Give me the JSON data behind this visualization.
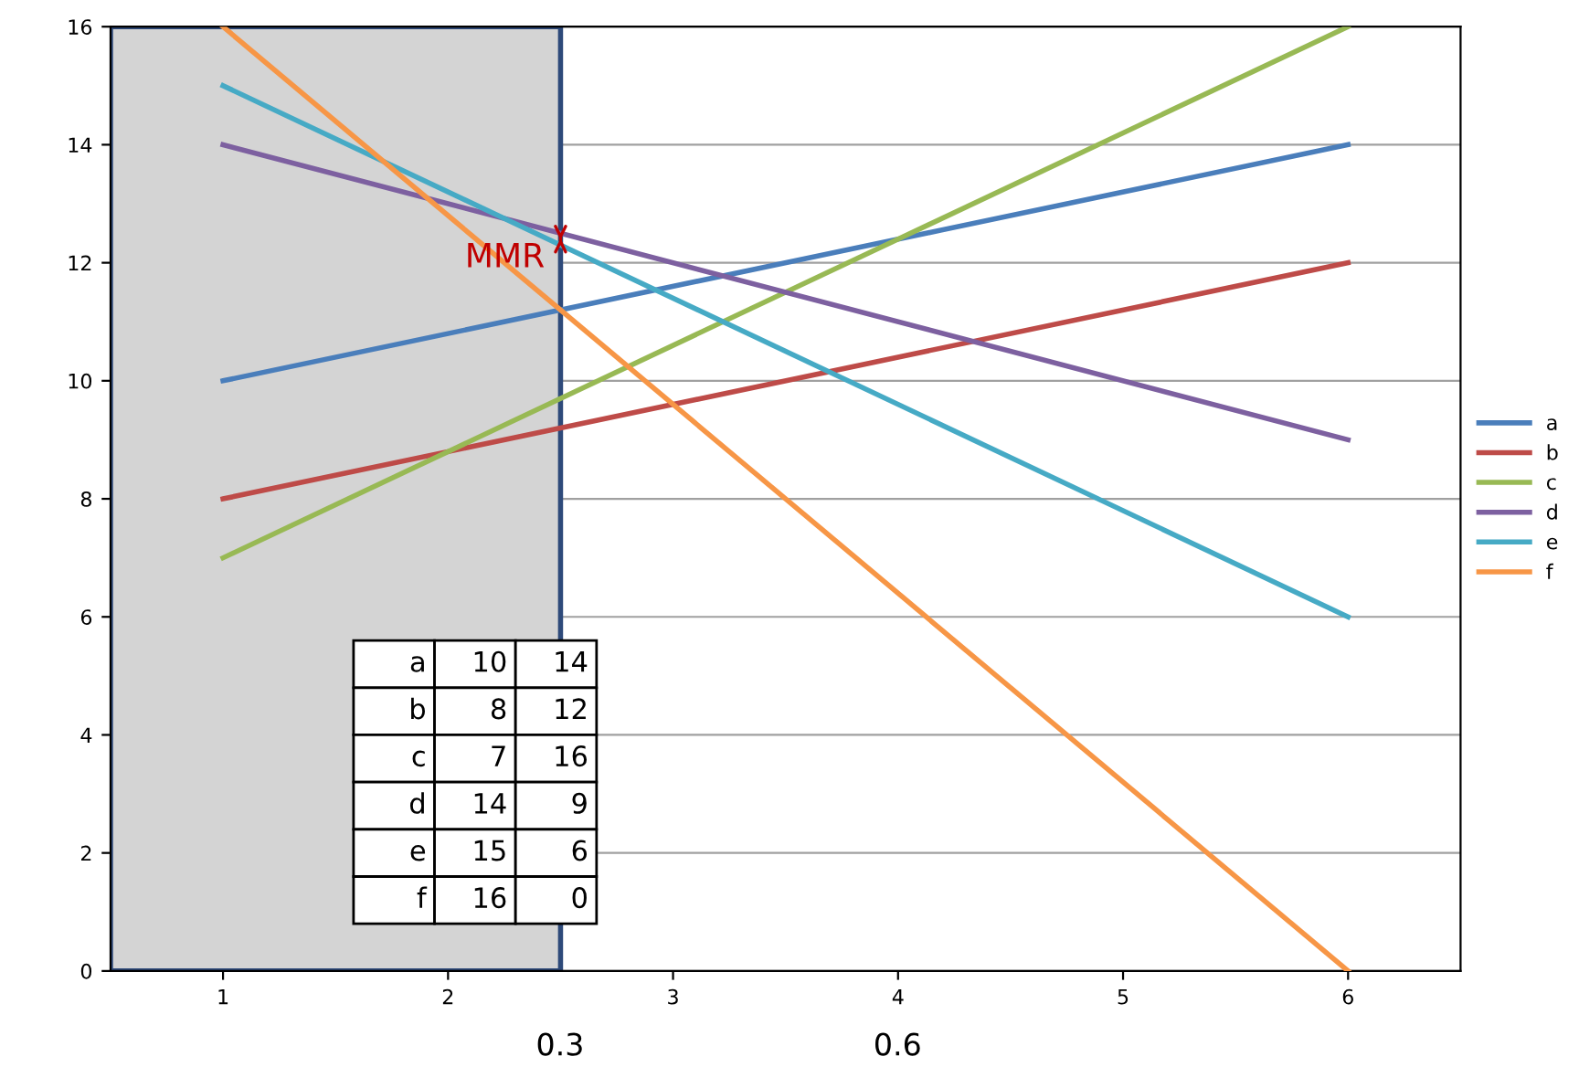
{
  "chart_data": {
    "type": "line",
    "x": [
      1,
      6
    ],
    "series": [
      {
        "name": "a",
        "color": "#4a7ebb",
        "values": [
          10,
          14
        ]
      },
      {
        "name": "b",
        "color": "#be4b48",
        "values": [
          8,
          12
        ]
      },
      {
        "name": "c",
        "color": "#98b954",
        "values": [
          7,
          16
        ]
      },
      {
        "name": "d",
        "color": "#7d60a0",
        "values": [
          14,
          9
        ]
      },
      {
        "name": "e",
        "color": "#46aac5",
        "values": [
          15,
          6
        ]
      },
      {
        "name": "f",
        "color": "#f79646",
        "values": [
          16,
          0
        ]
      }
    ],
    "xlim": [
      0.5,
      6.5
    ],
    "xticks": [
      1,
      2,
      3,
      4,
      5,
      6
    ],
    "ylim": [
      0,
      16
    ],
    "yticks": [
      0,
      2,
      4,
      6,
      8,
      10,
      12,
      14,
      16
    ],
    "grid": "y",
    "legend": "right",
    "marker": "none",
    "line_style": "solid",
    "bands": [
      {
        "axis": "x",
        "from": 0.5,
        "to": 2.5,
        "color": "#d4d4d4"
      }
    ],
    "annotations": [
      {
        "text": "MMR",
        "x": 2.5,
        "y": 12.5
      },
      "a",
      "10",
      "14",
      "b",
      "8",
      "12",
      "c",
      "7",
      "16",
      "d",
      "14",
      "9",
      "e",
      "15",
      "6",
      "f",
      "16",
      "0",
      "0.3",
      "0.6"
    ]
  }
}
